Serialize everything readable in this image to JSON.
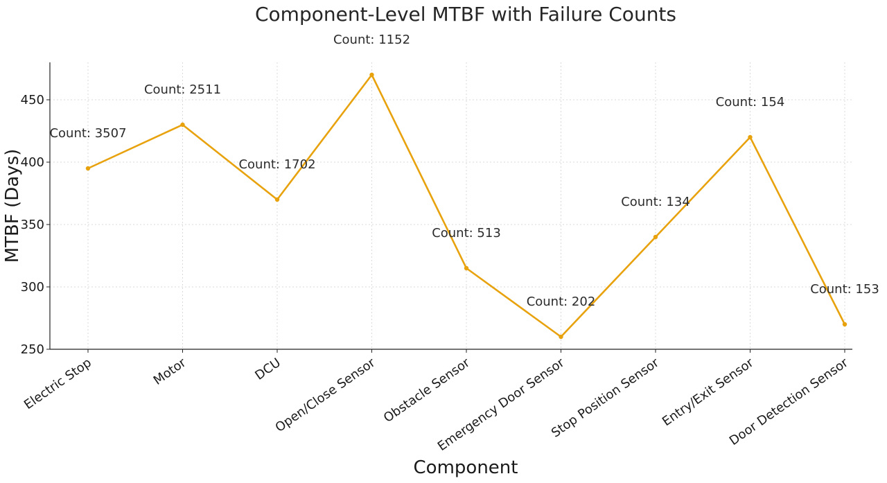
{
  "chart_data": {
    "type": "line",
    "title": "Component-Level MTBF with Failure Counts",
    "xlabel": "Component",
    "ylabel": "MTBF (Days)",
    "ylim": [
      250,
      480
    ],
    "yticks": [
      250,
      300,
      350,
      400,
      450
    ],
    "categories": [
      "Electric Stop",
      "Motor",
      "DCU",
      "Open/Close Sensor",
      "Obstacle Sensor",
      "Emergency Door Sensor",
      "Stop Position Sensor",
      "Entry/Exit Sensor",
      "Door Detection Sensor"
    ],
    "series": [
      {
        "name": "MTBF",
        "color": "#e8a20e",
        "values": [
          395,
          430,
          370,
          470,
          315,
          260,
          340,
          420,
          270
        ]
      }
    ],
    "annotations": [
      "Count: 3507",
      "Count: 2511",
      "Count: 1702",
      "Count: 1152",
      "Count: 513",
      "Count: 202",
      "Count: 134",
      "Count: 154",
      "Count: 153"
    ],
    "grid": true
  }
}
